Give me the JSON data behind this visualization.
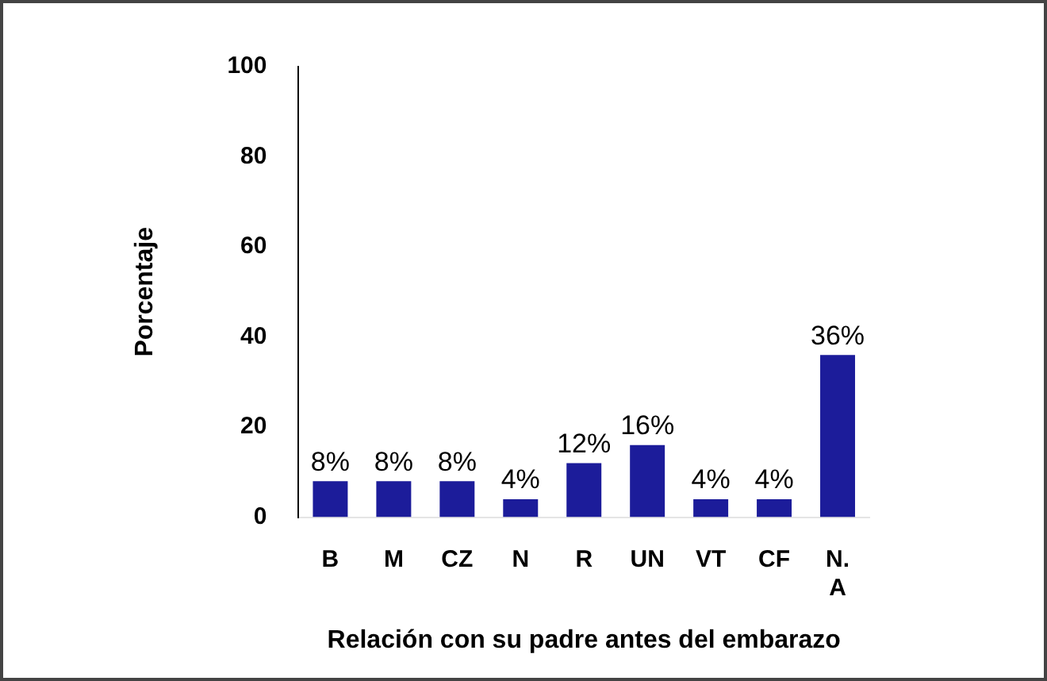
{
  "chart_data": {
    "type": "bar",
    "xlabel": "Relación con su padre antes del embarazo",
    "ylabel": "Porcentaje",
    "categories": [
      "B",
      "M",
      "CZ",
      "N",
      "R",
      "UN",
      "VT",
      "CF",
      "N. A"
    ],
    "values": [
      8,
      8,
      8,
      4,
      12,
      16,
      4,
      4,
      36
    ],
    "value_labels": [
      "8%",
      "8%",
      "8%",
      "4%",
      "12%",
      "16%",
      "4%",
      "4%",
      "36%"
    ],
    "color": "#1c1c9a",
    "ylim": [
      0,
      100
    ],
    "yticks": [
      0,
      20,
      40,
      60,
      80,
      100
    ],
    "grid": false,
    "legend": false
  }
}
